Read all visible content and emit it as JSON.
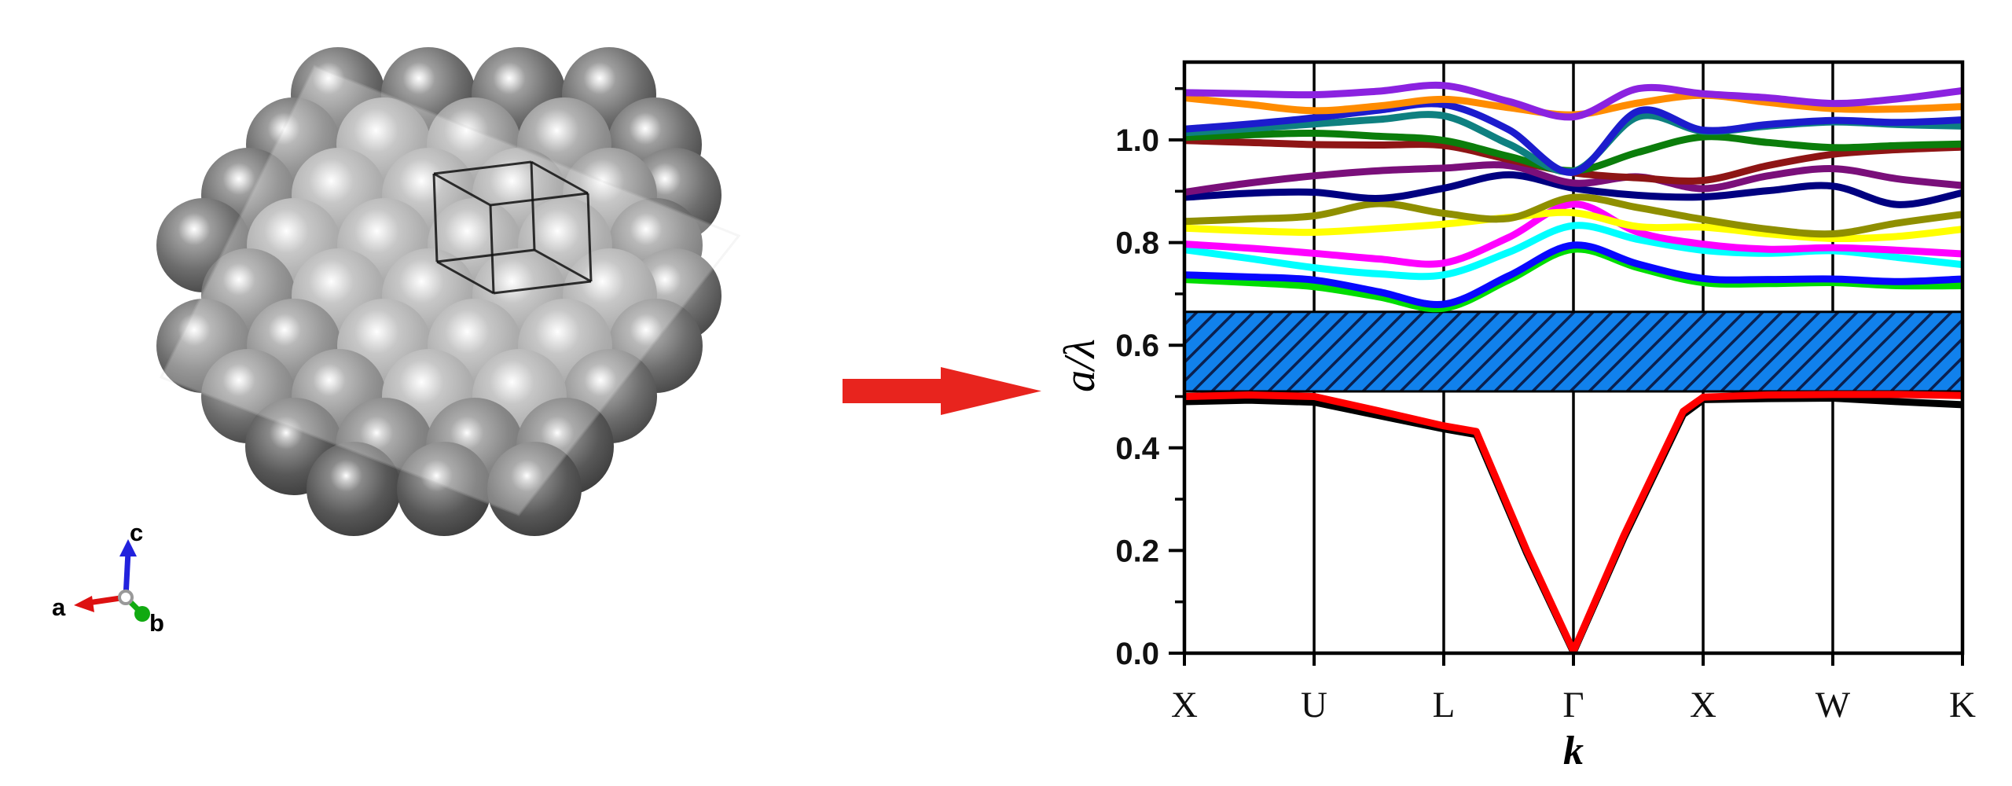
{
  "figure": {
    "description_visible_text_only": "",
    "left_panel": {
      "type": "crystal-structure-3d",
      "axis_triad": {
        "labels": {
          "a": "a",
          "b": "b",
          "c": "c"
        },
        "colors": {
          "a": "#dd1111",
          "b": "#11aa11",
          "c": "#2222dd"
        }
      }
    },
    "arrow": {
      "direction": "right",
      "color": "#e8241e"
    }
  },
  "chart_data": {
    "type": "line",
    "title": "",
    "xlabel": "k",
    "ylabel": "a/λ",
    "x_axis": {
      "tick_labels": [
        "X",
        "U",
        "L",
        "Γ",
        "X",
        "W",
        "K"
      ],
      "positions": [
        0,
        0.1667,
        0.3333,
        0.5,
        0.6667,
        0.8333,
        1
      ],
      "gridlines": true
    },
    "y_axis": {
      "min": 0.0,
      "max": 1.152,
      "major_tick_values": [
        0.0,
        0.2,
        0.4,
        0.6,
        0.8,
        1.0
      ],
      "major_tick_labels": [
        "0.0",
        "0.2",
        "0.4",
        "0.6",
        "0.8",
        "1.0"
      ],
      "minor_tick_values": [
        0.1,
        0.3,
        0.5,
        0.7,
        0.9,
        1.1
      ]
    },
    "bandgap": {
      "from": 0.51,
      "to": 0.665,
      "fill": "#1181ec",
      "hatch_color": "#0a2050",
      "border_color": "#000000"
    },
    "station_fractions": [
      0,
      0.0833,
      0.1667,
      0.25,
      0.3333,
      0.4167,
      0.5,
      0.5833,
      0.6667,
      0.75,
      0.8333,
      0.9167,
      1
    ],
    "series": [
      {
        "name": "band-green-low",
        "color": "#00dd00",
        "smooth": true,
        "y": [
          0.728,
          0.722,
          0.714,
          0.694,
          0.672,
          0.727,
          0.787,
          0.751,
          0.722,
          0.72,
          0.722,
          0.716,
          0.716
        ]
      },
      {
        "name": "band-blue-low",
        "color": "#0808ff",
        "smooth": true,
        "y": [
          0.737,
          0.733,
          0.727,
          0.704,
          0.68,
          0.735,
          0.795,
          0.758,
          0.73,
          0.728,
          0.729,
          0.724,
          0.729
        ]
      },
      {
        "name": "band-cyan",
        "color": "#00ffff",
        "smooth": true,
        "y": [
          0.786,
          0.769,
          0.751,
          0.739,
          0.737,
          0.781,
          0.833,
          0.806,
          0.785,
          0.779,
          0.784,
          0.771,
          0.757
        ]
      },
      {
        "name": "band-magenta",
        "color": "#ff00ff",
        "smooth": true,
        "y": [
          0.797,
          0.789,
          0.779,
          0.768,
          0.76,
          0.81,
          0.875,
          0.82,
          0.797,
          0.787,
          0.79,
          0.785,
          0.778
        ]
      },
      {
        "name": "band-yellow",
        "color": "#ffff00",
        "smooth": true,
        "y": [
          0.828,
          0.823,
          0.82,
          0.827,
          0.836,
          0.849,
          0.858,
          0.831,
          0.83,
          0.817,
          0.808,
          0.812,
          0.826
        ]
      },
      {
        "name": "band-olive",
        "color": "#8f8f00",
        "smooth": true,
        "y": [
          0.841,
          0.846,
          0.852,
          0.876,
          0.857,
          0.847,
          0.888,
          0.868,
          0.845,
          0.826,
          0.817,
          0.838,
          0.855
        ]
      },
      {
        "name": "band-navy",
        "color": "#000080",
        "smooth": true,
        "y": [
          0.888,
          0.896,
          0.898,
          0.886,
          0.906,
          0.932,
          0.906,
          0.892,
          0.889,
          0.901,
          0.91,
          0.874,
          0.897
        ]
      },
      {
        "name": "band-purple",
        "color": "#7a0f7a",
        "smooth": true,
        "y": [
          0.898,
          0.916,
          0.93,
          0.94,
          0.945,
          0.95,
          0.916,
          0.928,
          0.905,
          0.93,
          0.944,
          0.924,
          0.911
        ]
      },
      {
        "name": "band-wine",
        "color": "#8e1515",
        "smooth": true,
        "y": [
          0.999,
          0.995,
          0.991,
          0.99,
          0.989,
          0.962,
          0.936,
          0.926,
          0.921,
          0.95,
          0.972,
          0.981,
          0.986
        ]
      },
      {
        "name": "band-darkgreen",
        "color": "#0b7d0b",
        "smooth": true,
        "y": [
          1.005,
          1.01,
          1.013,
          1.007,
          0.999,
          0.968,
          0.94,
          0.976,
          1.006,
          0.995,
          0.985,
          0.989,
          0.992
        ]
      },
      {
        "name": "band-teal",
        "color": "#0e8080",
        "smooth": true,
        "y": [
          1.014,
          1.022,
          1.031,
          1.04,
          1.047,
          0.992,
          0.939,
          1.045,
          1.017,
          1.027,
          1.035,
          1.03,
          1.027
        ]
      },
      {
        "name": "band-blue-high",
        "color": "#1c1ccd",
        "smooth": true,
        "y": [
          1.021,
          1.031,
          1.043,
          1.058,
          1.069,
          1.02,
          0.937,
          1.056,
          1.019,
          1.03,
          1.038,
          1.034,
          1.039
        ]
      },
      {
        "name": "band-orange",
        "color": "#ff8c00",
        "smooth": true,
        "y": [
          1.082,
          1.069,
          1.057,
          1.066,
          1.079,
          1.063,
          1.049,
          1.072,
          1.087,
          1.073,
          1.061,
          1.06,
          1.065
        ]
      },
      {
        "name": "band-violet",
        "color": "#8b22e0",
        "smooth": true,
        "y": [
          1.092,
          1.09,
          1.088,
          1.095,
          1.106,
          1.075,
          1.045,
          1.1,
          1.09,
          1.082,
          1.071,
          1.08,
          1.096
        ]
      },
      {
        "name": "band-black",
        "color": "#000000",
        "smooth": false,
        "points": [
          [
            0,
            0.49
          ],
          [
            0.083,
            0.493
          ],
          [
            0.167,
            0.489
          ],
          [
            0.25,
            0.463
          ],
          [
            0.333,
            0.437
          ],
          [
            0.375,
            0.426
          ],
          [
            0.44,
            0.195
          ],
          [
            0.5,
            0.002
          ],
          [
            0.565,
            0.225
          ],
          [
            0.641,
            0.465
          ],
          [
            0.667,
            0.494
          ],
          [
            0.75,
            0.496
          ],
          [
            0.833,
            0.497
          ],
          [
            0.917,
            0.49
          ],
          [
            1,
            0.484
          ]
        ]
      },
      {
        "name": "band-red",
        "color": "#ff0000",
        "smooth": false,
        "points": [
          [
            0,
            0.5
          ],
          [
            0.083,
            0.503
          ],
          [
            0.167,
            0.5
          ],
          [
            0.25,
            0.472
          ],
          [
            0.333,
            0.443
          ],
          [
            0.375,
            0.432
          ],
          [
            0.44,
            0.2
          ],
          [
            0.5,
            0.004
          ],
          [
            0.565,
            0.23
          ],
          [
            0.641,
            0.471
          ],
          [
            0.667,
            0.499
          ],
          [
            0.75,
            0.503
          ],
          [
            0.833,
            0.504
          ],
          [
            0.917,
            0.504
          ],
          [
            1,
            0.502
          ]
        ]
      }
    ],
    "legend": null,
    "line_width": 9
  }
}
